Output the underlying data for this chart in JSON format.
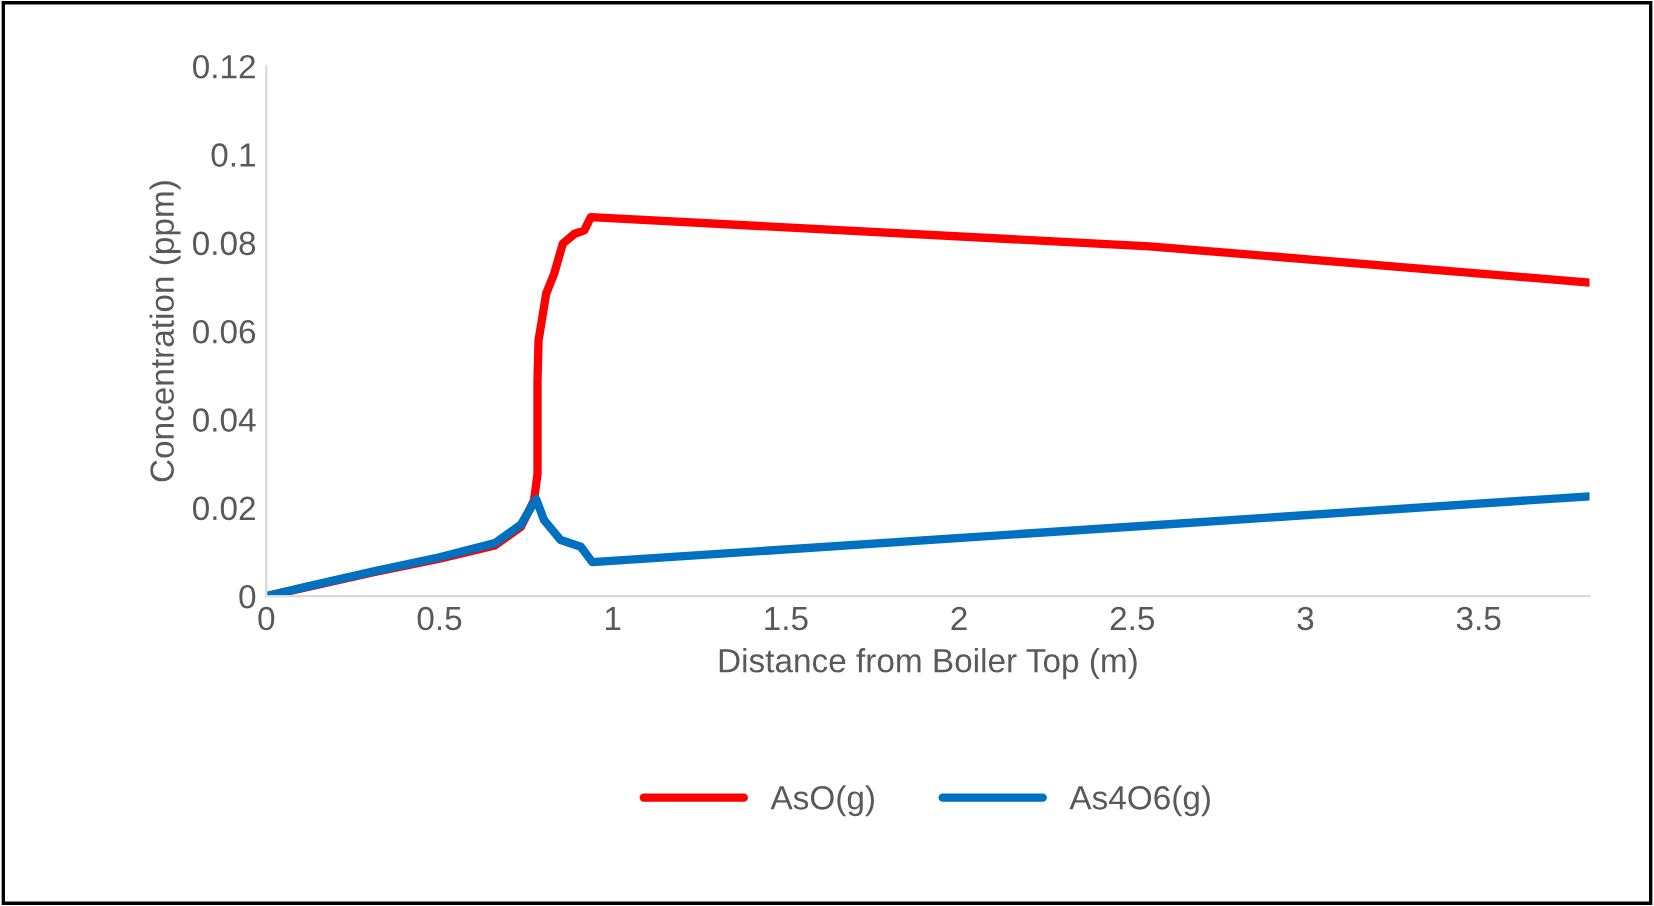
{
  "chart_data": {
    "type": "line",
    "xlabel": "Distance from Boiler Top (m)",
    "ylabel": "Concentration (ppm)",
    "xlim": [
      0,
      3.82
    ],
    "xticks": [
      0,
      0.5,
      1,
      1.5,
      2,
      2.5,
      3,
      3.5
    ],
    "ylim": [
      0,
      0.12
    ],
    "yticks": [
      0,
      0.02,
      0.04,
      0.06,
      0.08,
      0.1,
      0.12
    ],
    "grid": false,
    "legend": "bottom",
    "marker": "none",
    "line_style": "solid",
    "series": [
      {
        "name": "AsO(g)",
        "color": "#ff0000",
        "x": [
          0,
          0.12,
          0.31,
          0.5,
          0.66,
          0.735,
          0.773,
          0.783,
          0.783,
          0.786,
          0.808,
          0.831,
          0.856,
          0.889,
          0.918,
          0.937,
          2.55,
          3.82
        ],
        "values": [
          0,
          0.0021,
          0.0054,
          0.0085,
          0.0115,
          0.0157,
          0.0217,
          0.0277,
          0.0489,
          0.0579,
          0.0685,
          0.073,
          0.0798,
          0.082,
          0.0828,
          0.0858,
          0.0792,
          0.071
        ]
      },
      {
        "name": "As4O6(g)",
        "color": "#0070c0",
        "x": [
          0,
          0.12,
          0.31,
          0.5,
          0.66,
          0.735,
          0.779,
          0.802,
          0.85,
          0.908,
          0.941,
          2.55,
          3.82
        ],
        "values": [
          0,
          0.0022,
          0.0056,
          0.0088,
          0.012,
          0.0162,
          0.022,
          0.0172,
          0.0127,
          0.0112,
          0.0077,
          0.016,
          0.0226
        ]
      }
    ]
  }
}
